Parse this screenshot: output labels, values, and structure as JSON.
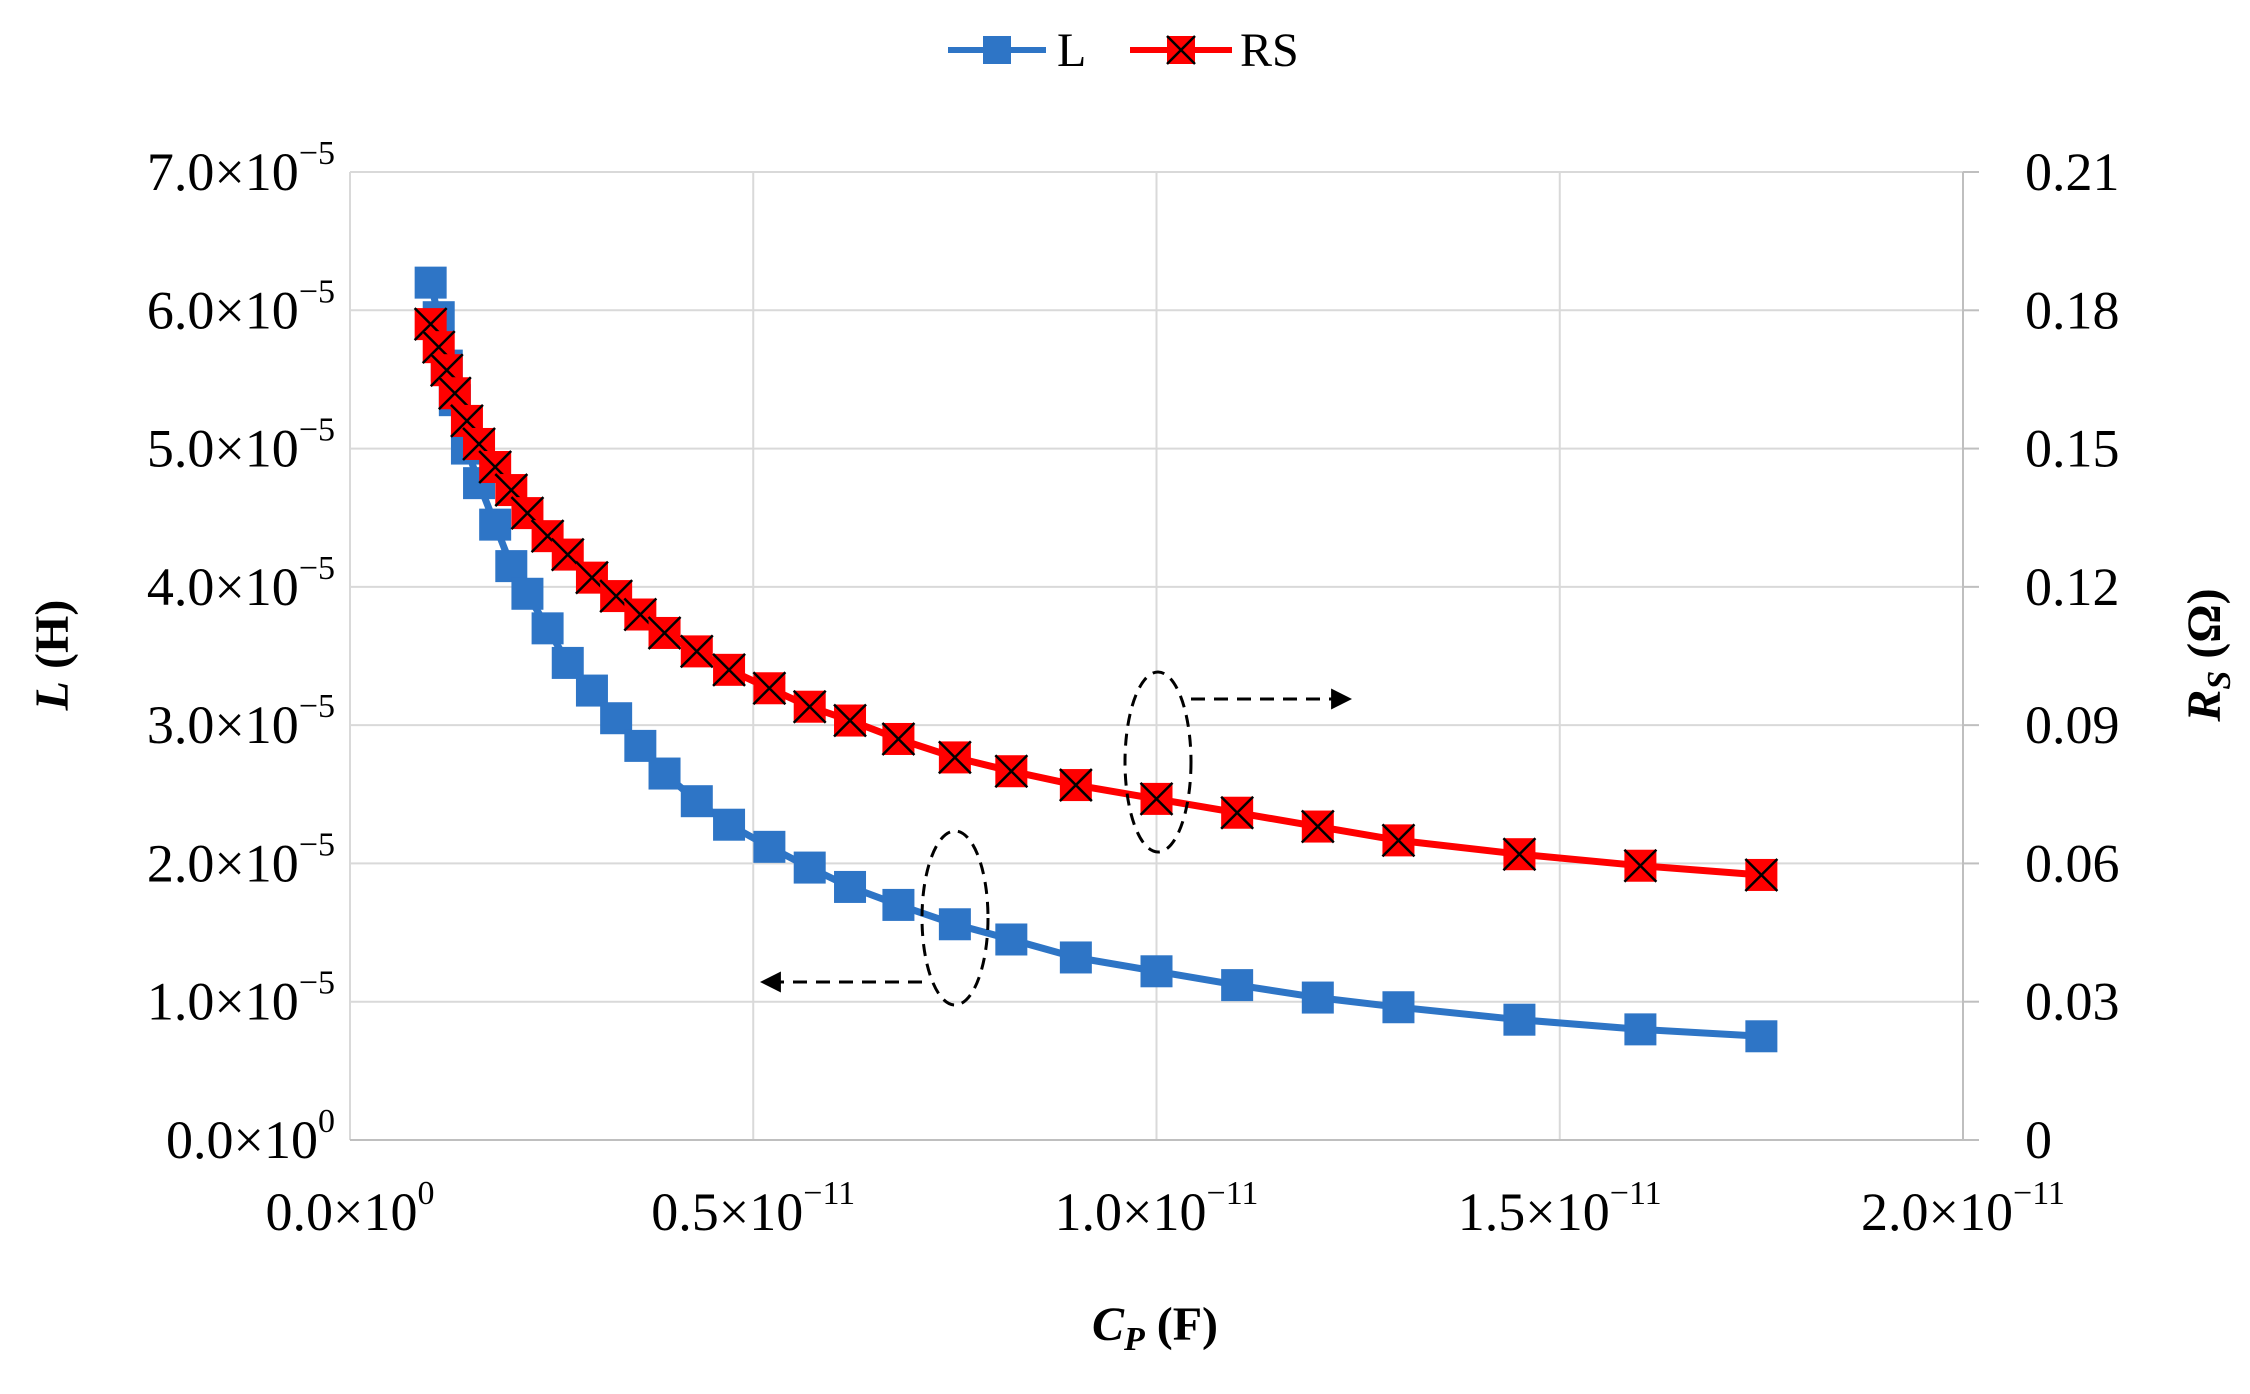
{
  "chart_data": {
    "type": "line",
    "legend": {
      "position": "top-center",
      "entries": [
        {
          "name": "L",
          "color": "#2E75C6",
          "marker": "square"
        },
        {
          "name": "RS",
          "color": "#FF0000",
          "marker": "square-x"
        }
      ]
    },
    "x_axis": {
      "label_main": "C",
      "label_sub": "P",
      "label_unit": " (F)",
      "range": [
        0,
        2e-11
      ],
      "ticks": [
        {
          "value": 0,
          "mant": "0.0×10",
          "exp": "0"
        },
        {
          "value": 5e-12,
          "mant": "0.5×10",
          "exp": "−11"
        },
        {
          "value": 1e-11,
          "mant": "1.0×10",
          "exp": "−11"
        },
        {
          "value": 1.5e-11,
          "mant": "1.5×10",
          "exp": "−11"
        },
        {
          "value": 2e-11,
          "mant": "2.0×10",
          "exp": "−11"
        }
      ]
    },
    "y_axis_left": {
      "label_main": "L",
      "label_unit": " (H)",
      "range": [
        0,
        7e-05
      ],
      "ticks": [
        {
          "value": 0,
          "mant": "0.0×10",
          "exp": "0"
        },
        {
          "value": 1e-05,
          "mant": "1.0×10",
          "exp": "−5"
        },
        {
          "value": 2e-05,
          "mant": "2.0×10",
          "exp": "−5"
        },
        {
          "value": 3e-05,
          "mant": "3.0×10",
          "exp": "−5"
        },
        {
          "value": 4e-05,
          "mant": "4.0×10",
          "exp": "−5"
        },
        {
          "value": 5e-05,
          "mant": "5.0×10",
          "exp": "−5"
        },
        {
          "value": 6e-05,
          "mant": "6.0×10",
          "exp": "−5"
        },
        {
          "value": 7e-05,
          "mant": "7.0×10",
          "exp": "−5"
        }
      ]
    },
    "y_axis_right": {
      "label_main": "R",
      "label_sub": "S",
      "label_unit": " (Ω)",
      "range": [
        0,
        0.21
      ],
      "ticks": [
        {
          "value": 0,
          "label": "0"
        },
        {
          "value": 0.03,
          "label": "0.03"
        },
        {
          "value": 0.06,
          "label": "0.06"
        },
        {
          "value": 0.09,
          "label": "0.09"
        },
        {
          "value": 0.12,
          "label": "0.12"
        },
        {
          "value": 0.15,
          "label": "0.15"
        },
        {
          "value": 0.18,
          "label": "0.18"
        },
        {
          "value": 0.21,
          "label": "0.21"
        }
      ]
    },
    "grid": true,
    "x": [
      1e-12,
      1.1e-12,
      1.2e-12,
      1.3e-12,
      1.45e-12,
      1.6e-12,
      1.8e-12,
      2e-12,
      2.2e-12,
      2.45e-12,
      2.7e-12,
      3e-12,
      3.3e-12,
      3.6e-12,
      3.9e-12,
      4.3e-12,
      4.7e-12,
      5.2e-12,
      5.7e-12,
      6.2e-12,
      6.8e-12,
      7.5e-12,
      8.2e-12,
      9e-12,
      1e-11,
      1.1e-11,
      1.2e-11,
      1.3e-11,
      1.45e-11,
      1.6e-11,
      1.75e-11
    ],
    "series": [
      {
        "name": "L",
        "axis": "left",
        "color": "#2E75C6",
        "marker": "square",
        "values": [
          6.2e-05,
          5.95e-05,
          5.6e-05,
          5.35e-05,
          5e-05,
          4.75e-05,
          4.45e-05,
          4.15e-05,
          3.95e-05,
          3.7e-05,
          3.45e-05,
          3.25e-05,
          3.05e-05,
          2.85e-05,
          2.65e-05,
          2.45e-05,
          2.28e-05,
          2.12e-05,
          1.97e-05,
          1.83e-05,
          1.7e-05,
          1.56e-05,
          1.45e-05,
          1.32e-05,
          1.22e-05,
          1.12e-05,
          1.03e-05,
          9.6e-06,
          8.7e-06,
          8e-06,
          7.5e-06
        ]
      },
      {
        "name": "RS",
        "axis": "right",
        "color": "#FF0000",
        "marker": "square-x",
        "values": [
          0.177,
          0.172,
          0.167,
          0.162,
          0.156,
          0.151,
          0.146,
          0.141,
          0.136,
          0.131,
          0.127,
          0.122,
          0.118,
          0.114,
          0.11,
          0.106,
          0.102,
          0.098,
          0.094,
          0.091,
          0.087,
          0.083,
          0.08,
          0.077,
          0.074,
          0.071,
          0.068,
          0.065,
          0.062,
          0.0595,
          0.0575
        ]
      }
    ]
  }
}
